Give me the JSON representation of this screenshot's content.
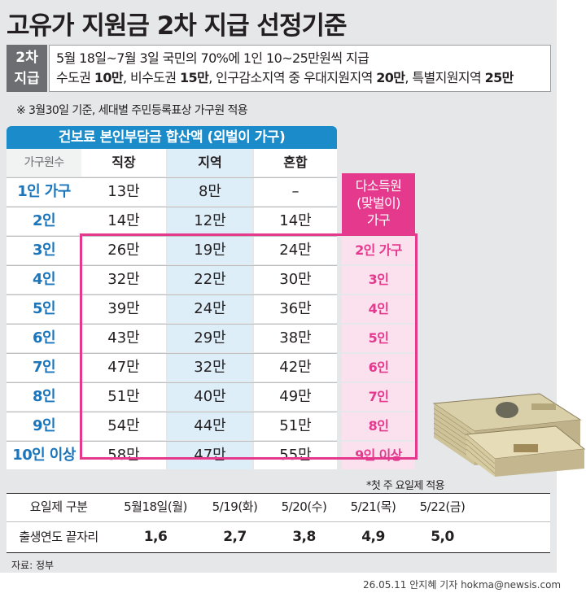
{
  "title": "고유가 지원금 2차 지급 선정기준",
  "badge": {
    "line1": "2차",
    "line2": "지급"
  },
  "criteria": {
    "line1": "5월 18일~7월 3일 국민의 70%에 1인 10~25만원씩 지급",
    "line2_parts": [
      {
        "text": "수도권 ",
        "bold": false
      },
      {
        "text": "10만",
        "bold": true
      },
      {
        "text": ", 비수도권 ",
        "bold": false
      },
      {
        "text": "15만",
        "bold": true
      },
      {
        "text": ", 인구감소지역 중 우대지원지역 ",
        "bold": false
      },
      {
        "text": "20만",
        "bold": true
      },
      {
        "text": ", 특별지원지역 ",
        "bold": false
      },
      {
        "text": "25만",
        "bold": true
      }
    ]
  },
  "note": "※ 3월30일 기준, 세대별 주민등록표상 가구원 적용",
  "main_table": {
    "header": "건보료 본인부담금 합산액 (외벌이 가구)",
    "columns": [
      "가구원수",
      "직장",
      "지역",
      "혼합"
    ],
    "rows": [
      {
        "label": "1인 가구",
        "values": [
          "13만",
          "8만",
          "–"
        ]
      },
      {
        "label": "2인",
        "values": [
          "14만",
          "12만",
          "14만"
        ]
      },
      {
        "label": "3인",
        "values": [
          "26만",
          "19만",
          "24만"
        ]
      },
      {
        "label": "4인",
        "values": [
          "32만",
          "22만",
          "30만"
        ]
      },
      {
        "label": "5인",
        "values": [
          "39만",
          "24만",
          "36만"
        ]
      },
      {
        "label": "6인",
        "values": [
          "43만",
          "29만",
          "38만"
        ]
      },
      {
        "label": "7인",
        "values": [
          "47만",
          "32만",
          "42만"
        ]
      },
      {
        "label": "8인",
        "values": [
          "51만",
          "40만",
          "49만"
        ]
      },
      {
        "label": "9인",
        "values": [
          "54만",
          "44만",
          "51만"
        ]
      },
      {
        "label": "10인 이상",
        "values": [
          "58만",
          "47만",
          "55만"
        ]
      }
    ]
  },
  "multi_earner": {
    "header_lines": [
      "다소득원",
      "(맞벌이)",
      "가구"
    ],
    "values": [
      "2인 가구",
      "3인",
      "4인",
      "5인",
      "6인",
      "7인",
      "8인",
      "9인 이상"
    ]
  },
  "footnote": "*첫 주 요일제 적용",
  "schedule_table": {
    "row1": {
      "label": "요일제 구분",
      "values": [
        "5월18일(월)",
        "5/19(화)",
        "5/20(수)",
        "5/21(목)",
        "5/22(금)"
      ]
    },
    "row2": {
      "label": "출생연도 끝자리",
      "values": [
        "1,6",
        "2,7",
        "3,8",
        "4,9",
        "5,0"
      ]
    }
  },
  "source": "자료: 정부",
  "credit": "26.05.11 안지혜 기자 hokma@newsis.com",
  "colors": {
    "blue": "#1b8bc9",
    "pink": "#e5398d",
    "panel": "#e6e7e8"
  }
}
